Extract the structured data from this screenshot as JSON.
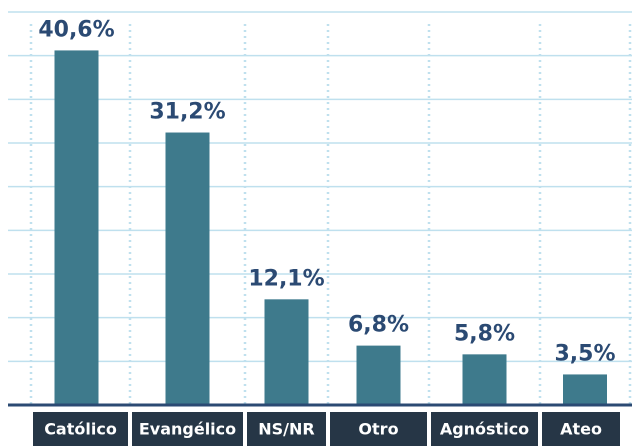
{
  "chart_data": {
    "type": "bar",
    "categories": [
      "Católico",
      "Evangélico",
      "NS/NR",
      "Otro",
      "Agnóstico",
      "Ateo"
    ],
    "values": [
      40.6,
      31.2,
      12.1,
      6.8,
      5.8,
      3.5
    ],
    "value_labels": [
      "40,6%",
      "31,2%",
      "12,1%",
      "6,8%",
      "5,8%",
      "3,5%"
    ],
    "color": "#3e7a8c",
    "ylim": [
      0,
      45
    ],
    "yticks": [
      0,
      5,
      10,
      15,
      20,
      25,
      30,
      35,
      40,
      45
    ],
    "grid": true
  }
}
